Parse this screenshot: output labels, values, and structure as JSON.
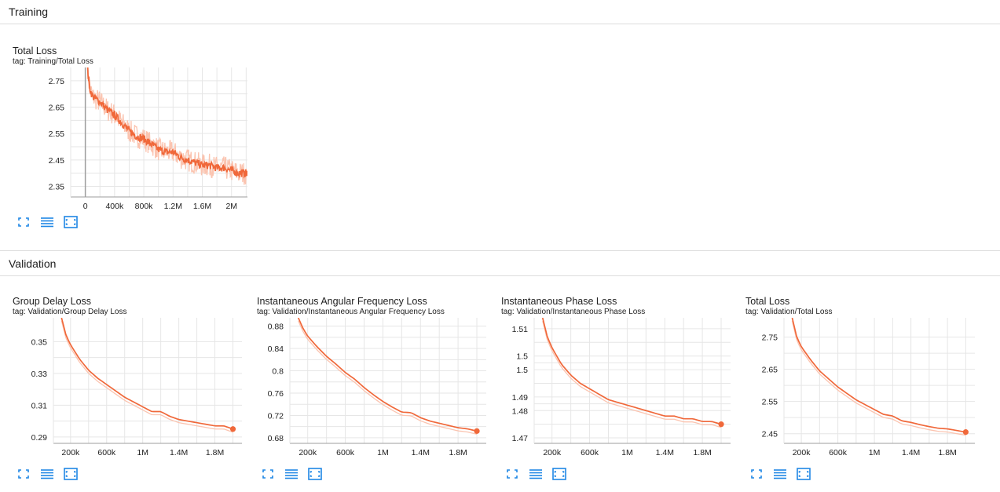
{
  "sections": [
    {
      "title": "Training"
    },
    {
      "title": "Validation"
    }
  ],
  "colors": {
    "line": "#f0683a",
    "raw": "#fbc4b0",
    "grid": "#e6e6e6",
    "axis": "#9e9e9e",
    "icon": "#1f87e5"
  },
  "icons": [
    "fit-domain-icon",
    "toggle-log-scale-icon",
    "expand-chart-icon"
  ],
  "chart_data": [
    {
      "type": "line",
      "title": "Total Loss",
      "tag": "tag: Training/Total Loss",
      "x_ticks": [
        {
          "v": 0,
          "label": "0"
        },
        {
          "v": 400000,
          "label": "400k"
        },
        {
          "v": 800000,
          "label": "800k"
        },
        {
          "v": 1200000,
          "label": "1.2M"
        },
        {
          "v": 1600000,
          "label": "1.6M"
        },
        {
          "v": 2000000,
          "label": "2M"
        }
      ],
      "y_ticks": [
        {
          "v": 2.35,
          "label": "2.35"
        },
        {
          "v": 2.45,
          "label": "2.45"
        },
        {
          "v": 2.55,
          "label": "2.55"
        },
        {
          "v": 2.65,
          "label": "2.65"
        },
        {
          "v": 2.75,
          "label": "2.75"
        }
      ],
      "xlim": [
        -200000,
        2250000
      ],
      "ylim": [
        2.31,
        2.8
      ],
      "zero_line": true,
      "noisy": true,
      "series": [
        {
          "x": [
            30000,
            60000,
            100000,
            150000,
            200000,
            300000,
            400000,
            500000,
            600000,
            700000,
            800000,
            900000,
            1000000,
            1100000,
            1200000,
            1300000,
            1400000,
            1500000,
            1600000,
            1700000,
            1800000,
            1900000,
            2000000,
            2100000,
            2200000
          ],
          "y": [
            2.8,
            2.72,
            2.69,
            2.68,
            2.67,
            2.64,
            2.62,
            2.59,
            2.56,
            2.54,
            2.53,
            2.51,
            2.49,
            2.48,
            2.48,
            2.46,
            2.45,
            2.44,
            2.43,
            2.43,
            2.42,
            2.42,
            2.41,
            2.4,
            2.4
          ]
        }
      ]
    },
    {
      "type": "line",
      "title": "Group Delay Loss",
      "tag": "tag: Validation/Group Delay Loss",
      "x_ticks": [
        {
          "v": 200000,
          "label": "200k"
        },
        {
          "v": 600000,
          "label": "600k"
        },
        {
          "v": 1000000,
          "label": "1M"
        },
        {
          "v": 1400000,
          "label": "1.4M"
        },
        {
          "v": 1800000,
          "label": "1.8M"
        }
      ],
      "y_ticks": [
        {
          "v": 0.29,
          "label": "0.29"
        },
        {
          "v": 0.31,
          "label": "0.31"
        },
        {
          "v": 0.33,
          "label": "0.33"
        },
        {
          "v": 0.35,
          "label": "0.35"
        }
      ],
      "xlim": [
        10000,
        2100000
      ],
      "ylim": [
        0.286,
        0.365
      ],
      "series": [
        {
          "x": [
            100000,
            150000,
            200000,
            300000,
            400000,
            500000,
            600000,
            700000,
            800000,
            900000,
            1000000,
            1100000,
            1200000,
            1300000,
            1400000,
            1500000,
            1600000,
            1700000,
            1800000,
            1900000,
            2000000
          ],
          "y": [
            0.365,
            0.354,
            0.348,
            0.339,
            0.332,
            0.327,
            0.323,
            0.319,
            0.315,
            0.312,
            0.309,
            0.306,
            0.306,
            0.303,
            0.301,
            0.3,
            0.299,
            0.298,
            0.297,
            0.297,
            0.295
          ]
        }
      ]
    },
    {
      "type": "line",
      "title": "Instantaneous Angular Frequency Loss",
      "tag": "tag: Validation/Instantaneous Angular Frequency Loss",
      "x_ticks": [
        {
          "v": 200000,
          "label": "200k"
        },
        {
          "v": 600000,
          "label": "600k"
        },
        {
          "v": 1000000,
          "label": "1M"
        },
        {
          "v": 1400000,
          "label": "1.4M"
        },
        {
          "v": 1800000,
          "label": "1.8M"
        }
      ],
      "y_ticks": [
        {
          "v": 0.68,
          "label": "0.68"
        },
        {
          "v": 0.72,
          "label": "0.72"
        },
        {
          "v": 0.76,
          "label": "0.76"
        },
        {
          "v": 0.8,
          "label": "0.8"
        },
        {
          "v": 0.84,
          "label": "0.84"
        },
        {
          "v": 0.88,
          "label": "0.88"
        }
      ],
      "xlim": [
        10000,
        2100000
      ],
      "ylim": [
        0.67,
        0.895
      ],
      "series": [
        {
          "x": [
            100000,
            150000,
            200000,
            300000,
            400000,
            500000,
            600000,
            700000,
            800000,
            900000,
            1000000,
            1100000,
            1200000,
            1300000,
            1400000,
            1500000,
            1600000,
            1700000,
            1800000,
            1900000,
            2000000
          ],
          "y": [
            0.895,
            0.876,
            0.862,
            0.843,
            0.826,
            0.812,
            0.797,
            0.785,
            0.77,
            0.757,
            0.745,
            0.735,
            0.726,
            0.725,
            0.716,
            0.71,
            0.706,
            0.702,
            0.698,
            0.696,
            0.692
          ]
        }
      ]
    },
    {
      "type": "line",
      "title": "Instantaneous Phase Loss",
      "tag": "tag: Validation/Instantaneous Phase Loss",
      "x_ticks": [
        {
          "v": 200000,
          "label": "200k"
        },
        {
          "v": 600000,
          "label": "600k"
        },
        {
          "v": 1000000,
          "label": "1M"
        },
        {
          "v": 1400000,
          "label": "1.4M"
        },
        {
          "v": 1800000,
          "label": "1.8M"
        }
      ],
      "y_ticks": [
        {
          "v": 1.47,
          "label": "1.47"
        },
        {
          "v": 1.48,
          "label": "1.48"
        },
        {
          "v": 1.485,
          "label": "1.49"
        },
        {
          "v": 1.495,
          "label": "1.5"
        },
        {
          "v": 1.5,
          "label": "1.5"
        },
        {
          "v": 1.51,
          "label": "1.51"
        }
      ],
      "xlim": [
        10000,
        2100000
      ],
      "ylim": [
        1.468,
        1.514
      ],
      "series": [
        {
          "x": [
            100000,
            150000,
            200000,
            300000,
            400000,
            500000,
            600000,
            700000,
            800000,
            900000,
            1000000,
            1100000,
            1200000,
            1300000,
            1400000,
            1500000,
            1600000,
            1700000,
            1800000,
            1900000,
            2000000
          ],
          "y": [
            1.514,
            1.507,
            1.503,
            1.497,
            1.493,
            1.49,
            1.488,
            1.486,
            1.484,
            1.483,
            1.482,
            1.481,
            1.48,
            1.479,
            1.478,
            1.478,
            1.477,
            1.477,
            1.476,
            1.476,
            1.475
          ]
        }
      ]
    },
    {
      "type": "line",
      "title": "Total Loss",
      "tag": "tag: Validation/Total Loss",
      "x_ticks": [
        {
          "v": 200000,
          "label": "200k"
        },
        {
          "v": 600000,
          "label": "600k"
        },
        {
          "v": 1000000,
          "label": "1M"
        },
        {
          "v": 1400000,
          "label": "1.4M"
        },
        {
          "v": 1800000,
          "label": "1.8M"
        }
      ],
      "y_ticks": [
        {
          "v": 2.45,
          "label": "2.45"
        },
        {
          "v": 2.55,
          "label": "2.55"
        },
        {
          "v": 2.65,
          "label": "2.65"
        },
        {
          "v": 2.75,
          "label": "2.75"
        }
      ],
      "xlim": [
        10000,
        2100000
      ],
      "ylim": [
        2.42,
        2.81
      ],
      "series": [
        {
          "x": [
            100000,
            150000,
            200000,
            300000,
            400000,
            500000,
            600000,
            700000,
            800000,
            900000,
            1000000,
            1100000,
            1200000,
            1300000,
            1400000,
            1500000,
            1600000,
            1700000,
            1800000,
            1900000,
            2000000
          ],
          "y": [
            2.81,
            2.75,
            2.72,
            2.68,
            2.645,
            2.62,
            2.595,
            2.575,
            2.555,
            2.54,
            2.525,
            2.51,
            2.505,
            2.49,
            2.485,
            2.478,
            2.472,
            2.467,
            2.465,
            2.46,
            2.455
          ]
        }
      ]
    }
  ]
}
